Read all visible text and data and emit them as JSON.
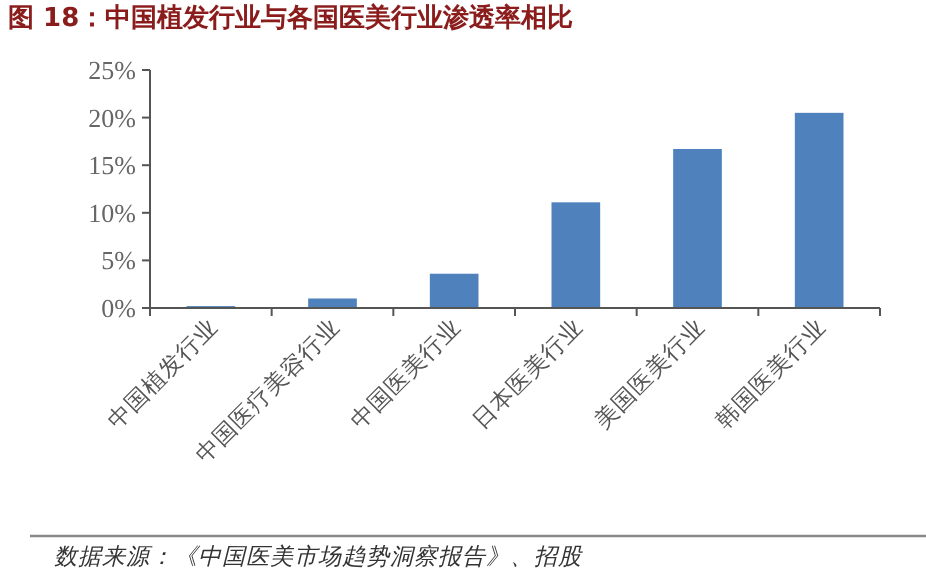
{
  "chart_data": {
    "type": "bar",
    "title": "图 18：中国植发行业与各国医美行业渗透率相比",
    "categories": [
      "中国植发行业",
      "中国医疗美容行业",
      "中国医美行业",
      "日本医美行业",
      "美国医美行业",
      "韩国医美行业"
    ],
    "values": [
      0.2,
      1.0,
      3.6,
      11.1,
      16.7,
      20.5
    ],
    "color": "#4f81bd",
    "ylim": [
      0,
      25
    ],
    "yticks": [
      {
        "value": 0,
        "label": "0%"
      },
      {
        "value": 5,
        "label": "5%"
      },
      {
        "value": 10,
        "label": "10%"
      },
      {
        "value": 15,
        "label": "15%"
      },
      {
        "value": 20,
        "label": "20%"
      },
      {
        "value": 25,
        "label": "25%"
      }
    ],
    "annotations": [
      "数据来源：《中国医美市场趋势洞察报告》、招股"
    ]
  }
}
